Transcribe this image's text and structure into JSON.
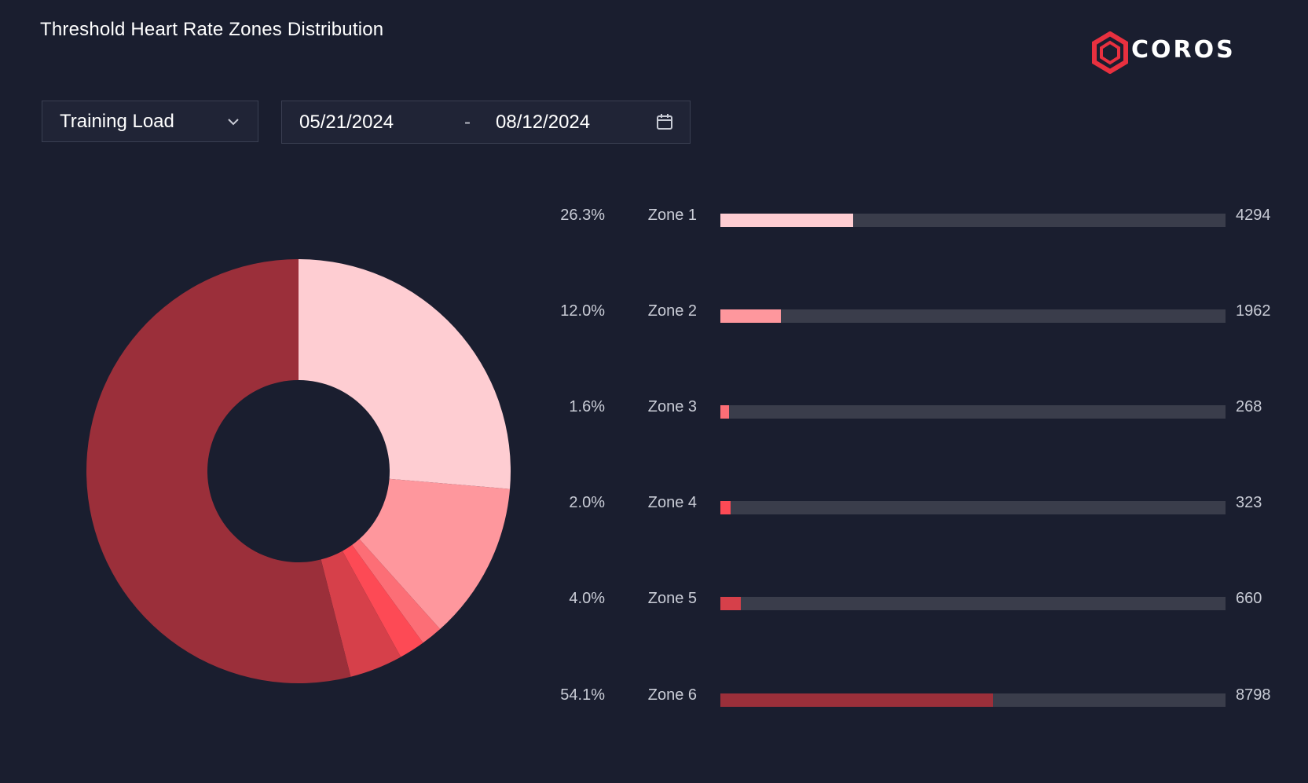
{
  "header": {
    "title": "Threshold Heart Rate Zones Distribution",
    "brand": "COROS",
    "brand_color": "#e8303f"
  },
  "controls": {
    "metric_select": {
      "value": "Training Load",
      "icon": "chevron-down-icon"
    },
    "date_range": {
      "start": "05/21/2024",
      "separator": "-",
      "end": "08/12/2024",
      "icon": "calendar-icon"
    }
  },
  "chart_data": {
    "type": "pie",
    "title": "Threshold Heart Rate Zones Distribution",
    "categories": [
      "Zone 1",
      "Zone 2",
      "Zone 3",
      "Zone 4",
      "Zone 5",
      "Zone 6"
    ],
    "values": [
      4294,
      1962,
      268,
      323,
      660,
      8798
    ],
    "percent_labels": [
      "26.3%",
      "12.0%",
      "1.6%",
      "2.0%",
      "4.0%",
      "54.1%"
    ],
    "value_labels": [
      "4294",
      "1962",
      "268",
      "323",
      "660",
      "8798"
    ],
    "colors": [
      "#fecdd2",
      "#fe979d",
      "#fc6e76",
      "#fd4a55",
      "#d6404a",
      "#9b2f3a"
    ],
    "bar_max": 16305,
    "style": "donut"
  }
}
